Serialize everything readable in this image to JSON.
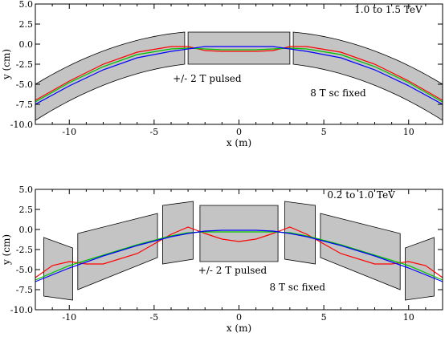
{
  "chart_data": [
    {
      "type": "line",
      "title": "",
      "xlabel": "x  (m)",
      "ylabel": "y  (cm)",
      "xlim": [
        -12,
        12
      ],
      "ylim": [
        -10,
        5
      ],
      "xticks": [
        -10,
        -5,
        0,
        5,
        10
      ],
      "yticks": [
        -10.0,
        -7.5,
        -5.0,
        -2.5,
        0.0,
        2.5,
        5.0
      ],
      "ytick_labels": [
        "-10.0",
        "-7.5",
        "-5.0",
        "-2.5",
        "0.0",
        "2.5",
        "5.0"
      ],
      "xtick_labels": [
        "-10",
        "-5",
        "0",
        "5",
        "10"
      ],
      "annotations": [
        {
          "text": "1.0 to 1.5 TeV",
          "x": 6.8,
          "y": 3.9
        },
        {
          "text": "+/- 2 T pulsed",
          "x": -3.9,
          "y": -4.7
        },
        {
          "text": "8 T sc fixed",
          "x": 4.2,
          "y": -6.5
        }
      ],
      "magnets": [
        {
          "x": [
            -12,
            -3.2
          ],
          "y_top_ends": [
            -5.0,
            1.5
          ],
          "y_bottom_ends": [
            -9.5,
            -2.5
          ],
          "curved": true
        },
        {
          "x": [
            -3.0,
            3.0
          ],
          "y_top_ends": [
            1.5,
            1.5
          ],
          "y_bottom_ends": [
            -2.5,
            -2.5
          ],
          "curved": false
        },
        {
          "x": [
            3.2,
            12
          ],
          "y_top_ends": [
            1.5,
            -5.0
          ],
          "y_bottom_ends": [
            -2.5,
            -9.5
          ],
          "curved": true
        }
      ],
      "series": [
        {
          "color": "#ff0000",
          "x": [
            -12,
            -10,
            -8,
            -6,
            -4,
            -3,
            -2,
            -1,
            0,
            1,
            2,
            3,
            4,
            6,
            8,
            10,
            12
          ],
          "y": [
            -7.0,
            -4.6,
            -2.5,
            -1.0,
            -0.3,
            -0.3,
            -0.8,
            -0.9,
            -0.9,
            -0.9,
            -0.8,
            -0.3,
            -0.3,
            -1.0,
            -2.5,
            -4.6,
            -7.0
          ]
        },
        {
          "color": "#00c000",
          "x": [
            -12,
            -10,
            -8,
            -6,
            -4,
            -3,
            -2,
            -1,
            0,
            1,
            2,
            3,
            4,
            6,
            8,
            10,
            12
          ],
          "y": [
            -7.2,
            -4.8,
            -2.8,
            -1.3,
            -0.6,
            -0.5,
            -0.6,
            -0.7,
            -0.7,
            -0.7,
            -0.6,
            -0.5,
            -0.6,
            -1.3,
            -2.8,
            -4.8,
            -7.2
          ]
        },
        {
          "color": "#0000ff",
          "x": [
            -12,
            -10,
            -8,
            -6,
            -4,
            -3,
            -2,
            -1,
            0,
            1,
            2,
            3,
            4,
            6,
            8,
            10,
            12
          ],
          "y": [
            -7.5,
            -5.2,
            -3.2,
            -1.7,
            -0.9,
            -0.6,
            -0.3,
            -0.3,
            -0.3,
            -0.3,
            -0.3,
            -0.6,
            -0.9,
            -1.7,
            -3.2,
            -5.2,
            -7.5
          ]
        }
      ]
    },
    {
      "type": "line",
      "title": "",
      "xlabel": "x  (m)",
      "ylabel": "y  (cm)",
      "xlim": [
        -12,
        12
      ],
      "ylim": [
        -10,
        5
      ],
      "xticks": [
        -10,
        -5,
        0,
        5,
        10
      ],
      "yticks": [
        -10.0,
        -7.5,
        -5.0,
        -2.5,
        0.0,
        2.5,
        5.0
      ],
      "ytick_labels": [
        "-10.0",
        "-7.5",
        "-5.0",
        "-2.5",
        "0.0",
        "2.5",
        "5.0"
      ],
      "xtick_labels": [
        "-10",
        "-5",
        "0",
        "5",
        "10"
      ],
      "annotations": [
        {
          "text": "0.2 to 1.0 TeV",
          "x": 5.2,
          "y": 3.9
        },
        {
          "text": "+/- 2 T pulsed",
          "x": -2.4,
          "y": -5.5
        },
        {
          "text": "8 T sc fixed",
          "x": 1.8,
          "y": -7.6
        }
      ],
      "magnets": [
        {
          "x": [
            -11.5,
            -9.8
          ],
          "y_top_ends": [
            -1.0,
            -2.3
          ],
          "y_bottom_ends": [
            -8.3,
            -8.8
          ],
          "curved": false
        },
        {
          "x": [
            -9.5,
            -4.8
          ],
          "y_top_ends": [
            -0.5,
            2.0
          ],
          "y_bottom_ends": [
            -7.5,
            -3.5
          ],
          "curved": false
        },
        {
          "x": [
            -4.5,
            -2.7
          ],
          "y_top_ends": [
            3.0,
            3.5
          ],
          "y_bottom_ends": [
            -4.3,
            -3.7
          ],
          "curved": false
        },
        {
          "x": [
            -2.3,
            2.3
          ],
          "y_top_ends": [
            3.0,
            3.0
          ],
          "y_bottom_ends": [
            -4.0,
            -4.0
          ],
          "curved": false
        },
        {
          "x": [
            2.7,
            4.5
          ],
          "y_top_ends": [
            3.5,
            3.0
          ],
          "y_bottom_ends": [
            -3.7,
            -4.3
          ],
          "curved": false
        },
        {
          "x": [
            4.8,
            9.5
          ],
          "y_top_ends": [
            2.0,
            -0.5
          ],
          "y_bottom_ends": [
            -3.5,
            -7.5
          ],
          "curved": false
        },
        {
          "x": [
            9.8,
            11.5
          ],
          "y_top_ends": [
            -2.3,
            -1.0
          ],
          "y_bottom_ends": [
            -8.8,
            -8.3
          ],
          "curved": false
        }
      ],
      "series": [
        {
          "color": "#ff0000",
          "x": [
            -12,
            -11,
            -10,
            -9,
            -8,
            -6,
            -5,
            -4,
            -3,
            -2,
            -1,
            0,
            1,
            2,
            3,
            4,
            5,
            6,
            8,
            9,
            10,
            11,
            12
          ],
          "y": [
            -6.0,
            -4.5,
            -4.0,
            -4.3,
            -4.3,
            -3.0,
            -1.8,
            -0.6,
            0.3,
            -0.5,
            -1.2,
            -1.5,
            -1.2,
            -0.5,
            0.3,
            -0.6,
            -1.8,
            -3.0,
            -4.3,
            -4.3,
            -4.0,
            -4.5,
            -6.0
          ]
        },
        {
          "color": "#00c000",
          "x": [
            -12,
            -10,
            -8,
            -6,
            -4,
            -3,
            -2,
            -1,
            0,
            1,
            2,
            3,
            4,
            6,
            8,
            10,
            12
          ],
          "y": [
            -6.3,
            -4.5,
            -3.2,
            -1.9,
            -0.8,
            -0.4,
            -0.3,
            -0.3,
            -0.3,
            -0.3,
            -0.3,
            -0.4,
            -0.8,
            -1.9,
            -3.2,
            -4.5,
            -6.3
          ]
        },
        {
          "color": "#0000ff",
          "x": [
            -12,
            -10,
            -8,
            -6,
            -4,
            -3,
            -2,
            -1,
            0,
            1,
            2,
            3,
            4,
            6,
            8,
            10,
            12
          ],
          "y": [
            -6.5,
            -4.8,
            -3.3,
            -2.0,
            -0.9,
            -0.5,
            -0.2,
            -0.1,
            -0.1,
            -0.1,
            -0.2,
            -0.5,
            -0.9,
            -2.0,
            -3.3,
            -4.8,
            -6.5
          ]
        }
      ]
    }
  ]
}
